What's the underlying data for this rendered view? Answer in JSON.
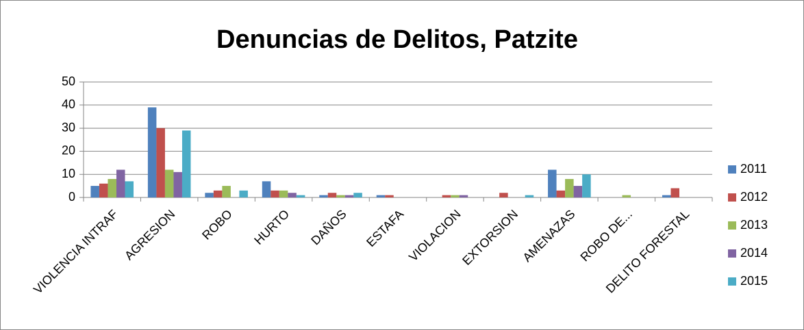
{
  "chart_data": {
    "type": "bar",
    "title": "Denuncias  de Delitos, Patzite",
    "categories": [
      "VIOLENCIA INTRAF",
      "AGRESION",
      "ROBO",
      "HURTO",
      "DAÑOS",
      "ESTAFA",
      "VIOLACION",
      "EXTORSION",
      "AMENAZAS",
      "ROBO DE...",
      "DELITO FORESTAL"
    ],
    "series": [
      {
        "name": "2011",
        "color": "#4f81bd",
        "values": [
          5,
          39,
          2,
          7,
          1,
          1,
          0,
          0,
          12,
          0,
          1
        ]
      },
      {
        "name": "2012",
        "color": "#c0504d",
        "values": [
          6,
          30,
          3,
          3,
          2,
          1,
          1,
          2,
          3,
          0,
          4
        ]
      },
      {
        "name": "2013",
        "color": "#9bbb59",
        "values": [
          8,
          12,
          5,
          3,
          1,
          0,
          1,
          0,
          8,
          1,
          0
        ]
      },
      {
        "name": "2014",
        "color": "#8064a2",
        "values": [
          12,
          11,
          0,
          2,
          1,
          0,
          1,
          0,
          5,
          0,
          0
        ]
      },
      {
        "name": "2015",
        "color": "#4bacc6",
        "values": [
          7,
          29,
          3,
          1,
          2,
          0,
          0,
          1,
          10,
          0,
          0
        ]
      }
    ],
    "ylim": [
      0,
      50
    ],
    "yticks": [
      0,
      10,
      20,
      30,
      40,
      50
    ],
    "grid": true,
    "legend": "right"
  }
}
